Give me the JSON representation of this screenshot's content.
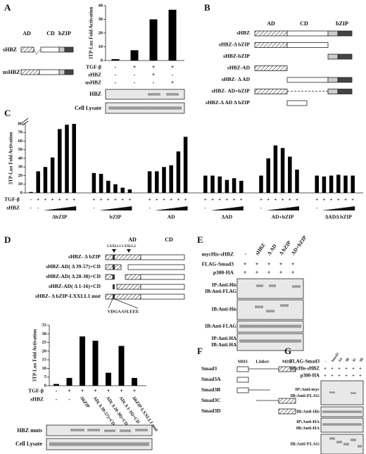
{
  "panel_a": {
    "letter": "A",
    "constructs": [
      "sHBZ",
      "usHBZ"
    ],
    "domains": [
      "AD",
      "CD",
      "bZIP"
    ],
    "chart": {
      "type": "bar",
      "ylabel": "3TP-Lux Fold Activation",
      "values": [
        1,
        7.5,
        30,
        37
      ],
      "ylim": [
        0,
        40
      ],
      "yticks": [
        0,
        10,
        20,
        30,
        40
      ],
      "color": "#000000"
    },
    "rows": [
      {
        "label": "TGF-β",
        "signs": [
          "-",
          "+",
          "+",
          "+"
        ]
      },
      {
        "label": "sHBZ",
        "signs": [
          "-",
          "-",
          "+",
          "-"
        ]
      },
      {
        "label": "usHBZ",
        "signs": [
          "-",
          "-",
          "-",
          "+"
        ]
      }
    ],
    "blots": [
      "HBZ",
      "Cell Lysate"
    ]
  },
  "panel_b": {
    "letter": "B",
    "domains": [
      "AD",
      "CD",
      "bZIP"
    ],
    "constructs": [
      "sHBZ",
      "sHBZ-Δ bZIP",
      "sHBZ-bZIP",
      "sHBZ-AD",
      "sHBZ- Δ AD",
      "sHBZ- AD+bZIP",
      "sHBZ-Δ AD Δ bZIP"
    ]
  },
  "panel_c": {
    "letter": "C",
    "row_labels": [
      "TGF-β",
      "sHBZ"
    ],
    "chart": {
      "type": "bar",
      "ylabel": "3TP-Lux Fold Activation",
      "ylim": [
        0,
        80
      ],
      "yticks": [
        0,
        10,
        20,
        30,
        40,
        50,
        60,
        70,
        80
      ],
      "color": "#000000",
      "groups": [
        {
          "name": "ΔbZIP",
          "values": [
            1,
            25,
            30,
            41,
            74,
            79,
            80
          ],
          "tgf": [
            "-",
            "+",
            "+",
            "+",
            "+",
            "+",
            "+"
          ],
          "shbz": [
            "-",
            "-"
          ]
        },
        {
          "name": "bZIP",
          "values": [
            23,
            22,
            14,
            10,
            6,
            4
          ],
          "tgf": [
            "+",
            "+",
            "+",
            "+",
            "+",
            "+"
          ],
          "shbz": [
            "-"
          ]
        },
        {
          "name": "AD",
          "values": [
            25,
            25,
            30,
            32,
            48,
            65
          ],
          "tgf": [
            "+",
            "+",
            "+",
            "+",
            "+",
            "+"
          ],
          "shbz": [
            "-"
          ]
        },
        {
          "name": "ΔAD",
          "values": [
            20,
            20,
            19,
            15,
            17,
            14
          ],
          "tgf": [
            "+",
            "+",
            "+",
            "+",
            "+",
            "+"
          ],
          "shbz": [
            "-"
          ]
        },
        {
          "name": "AD+bZIP",
          "values": [
            20,
            40,
            55,
            52,
            42,
            27
          ],
          "tgf": [
            "+",
            "+",
            "+",
            "+",
            "+",
            "+"
          ],
          "shbz": [
            "-"
          ]
        },
        {
          "name": "ΔADΔ bZIP",
          "values": [
            20,
            19,
            20,
            21,
            20,
            20
          ],
          "tgf": [
            "+",
            "+",
            "+",
            "+",
            "+",
            "+"
          ],
          "shbz": [
            "-"
          ]
        }
      ]
    }
  },
  "panel_d": {
    "letter": "D",
    "domains": [
      "AD",
      "CD"
    ],
    "motifs": [
      "LXXLL1",
      "LXXLL2"
    ],
    "constructs": [
      "sHBZ- Δ bZIP",
      "sHBZ-AD( Δ 39-57)+CD",
      "sHBZ-AD( Δ 20-38)+CD",
      "sHBZ-AD( Δ 1-16)+CD",
      "sHBZ- Δ bZIP-LXXLL1 mut"
    ],
    "mutation": "VDGAASLEEE",
    "chart": {
      "type": "bar",
      "ylabel": "3TP-Lux Fold Activation",
      "values": [
        1,
        4.5,
        28.5,
        26,
        7.5,
        23,
        4.5
      ],
      "ylim": [
        0,
        35
      ],
      "yticks": [
        0,
        5,
        10,
        15,
        20,
        25,
        30,
        35
      ],
      "color": "#000000"
    },
    "rows": [
      {
        "label": "TGF-β",
        "signs": [
          "-",
          "+",
          "+",
          "+",
          "+",
          "+",
          "+"
        ]
      },
      {
        "label": "sHBZ",
        "signs": [
          "-",
          "-"
        ]
      }
    ],
    "mutant_labels": [
      "ΔbZIP",
      "AD( Δ 39-57)+CD",
      "AD( Δ 20-38)+CD",
      "AD( Δ 1-16)+CD",
      "ΔbZIP-LXXLL1 mut"
    ],
    "blots": [
      "HBZ muts",
      "Cell Lysate"
    ]
  },
  "panel_e": {
    "letter": "E",
    "row_labels": [
      "mycHis-sHBZ",
      "FLAG-Smad3",
      "p300-HA"
    ],
    "columns": [
      "-",
      "sHBZ",
      "Δ AD",
      "Δ bZIP",
      "AD+bZIP"
    ],
    "signs": [
      [
        "+",
        "+",
        "+",
        "+",
        "+"
      ],
      [
        "+",
        "+",
        "+",
        "+",
        "+"
      ]
    ],
    "blots": [
      [
        "IP:Anti-His",
        "IB:Anti-FLAG"
      ],
      [
        "IB:Anti-His"
      ],
      [
        "IB:Anti-FLAG"
      ],
      [
        "IP:Anti-HA",
        "IB:Anti-HA"
      ]
    ]
  },
  "panel_f": {
    "letter": "F",
    "domains": [
      "MH1",
      "Linker",
      "MH2"
    ],
    "constructs": [
      "Smad3",
      "Smad3A",
      "Smad3B",
      "Smad3C",
      "Smad3D"
    ]
  },
  "panel_g": {
    "letter": "G",
    "row_labels": [
      "FLAG-Smad3",
      "mycHis-sHBZ",
      "p300-HA"
    ],
    "columns": [
      "-",
      "Smad3",
      "3A",
      "3B",
      "3C",
      "3D"
    ],
    "signs": [
      [
        "+",
        "+",
        "+",
        "+",
        "+",
        "+"
      ],
      [
        "+",
        "+",
        "+",
        "+",
        "+",
        "+"
      ]
    ],
    "blots": [
      [
        "IP:Anti-myc",
        "IB:Anti-FLAG"
      ],
      [
        "IB:Anti-His"
      ],
      [
        "IP:Anti-HA",
        "IB:Anti-HA"
      ],
      [
        "IB:Anti-FLAG"
      ]
    ]
  }
}
